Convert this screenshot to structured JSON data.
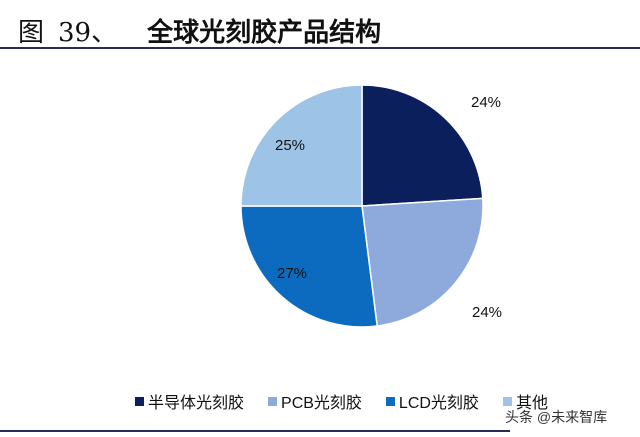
{
  "header": {
    "figure_label": "图",
    "figure_number": "39、",
    "title": "全球光刻胶产品结构"
  },
  "chart_data": {
    "type": "pie",
    "title": "全球光刻胶产品结构",
    "categories": [
      "半导体光刻胶",
      "PCB光刻胶",
      "LCD光刻胶",
      "其他"
    ],
    "values": [
      24,
      24,
      27,
      25
    ],
    "unit": "%",
    "colors": [
      "#0b1f5c",
      "#8eaadc",
      "#0c6bbf",
      "#9dc3e6"
    ],
    "legend_position": "bottom"
  },
  "labels": [
    "24%",
    "24%",
    "27%",
    "25%"
  ],
  "legend": [
    {
      "label": "半导体光刻胶",
      "color": "#0b1f5c"
    },
    {
      "label": "PCB光刻胶",
      "color": "#8eaadc"
    },
    {
      "label": "LCD光刻胶",
      "color": "#0c6bbf"
    },
    {
      "label": "其他",
      "color": "#9dc3e6"
    }
  ],
  "watermark": "头条 @未来智库"
}
